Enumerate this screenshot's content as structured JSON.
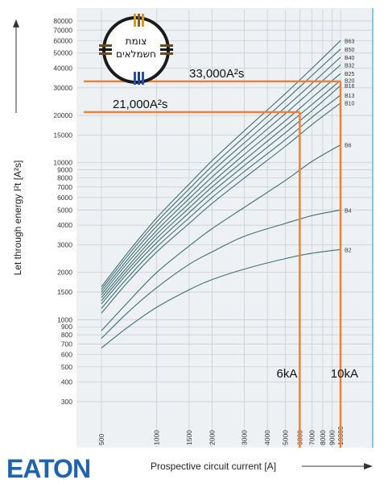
{
  "chart_data": {
    "type": "line",
    "xscale": "log",
    "yscale": "log",
    "xlim": [
      500,
      10000
    ],
    "ylim": [
      300,
      80000
    ],
    "xlabel": "Prospective circuit current [A]",
    "ylabel": "Let through energy I²t [A²s]",
    "x_ticks": [
      "500",
      "1000",
      "1500",
      "2000",
      "3000",
      "4000",
      "5000",
      "6000",
      "7000",
      "8000",
      "9000",
      "10000"
    ],
    "y_ticks": [
      "300",
      "400",
      "500",
      "600",
      "700",
      "800",
      "900",
      "1000",
      "1500",
      "2000",
      "3000",
      "4000",
      "5000",
      "6000",
      "7000",
      "8000",
      "9000",
      "10000",
      "15000",
      "20000",
      "30000",
      "40000",
      "50000",
      "60000",
      "70000",
      "80000"
    ],
    "grid": true,
    "series": [
      {
        "name": "B2",
        "x": [
          500,
          700,
          1000,
          1500,
          2000,
          3000,
          5000,
          7000,
          10000
        ],
        "values": [
          660,
          900,
          1200,
          1550,
          1800,
          2100,
          2450,
          2650,
          2800
        ]
      },
      {
        "name": "B4",
        "x": [
          500,
          700,
          1000,
          1500,
          2000,
          3000,
          5000,
          7000,
          10000
        ],
        "values": [
          760,
          1120,
          1600,
          2250,
          2700,
          3400,
          4100,
          4600,
          5000
        ]
      },
      {
        "name": "B6",
        "x": [
          500,
          700,
          1000,
          1500,
          2000,
          3000,
          5000,
          7000,
          10000
        ],
        "values": [
          850,
          1300,
          2000,
          2950,
          3800,
          5200,
          7700,
          10200,
          13000
        ]
      },
      {
        "name": "B10",
        "x": [
          500,
          700,
          1000,
          1500,
          2000,
          3000,
          5000,
          7000,
          10000
        ],
        "values": [
          1100,
          1750,
          2700,
          4100,
          5500,
          8000,
          12700,
          17500,
          24000
        ]
      },
      {
        "name": "B13",
        "x": [
          500,
          700,
          1000,
          1500,
          2000,
          3000,
          5000,
          7000,
          10000
        ],
        "values": [
          1180,
          1870,
          2900,
          4450,
          6000,
          8800,
          14000,
          19500,
          27000
        ]
      },
      {
        "name": "B16",
        "x": [
          500,
          700,
          1000,
          1500,
          2000,
          3000,
          5000,
          7000,
          10000
        ],
        "values": [
          1260,
          2000,
          3100,
          4800,
          6500,
          9600,
          15500,
          21500,
          31000
        ]
      },
      {
        "name": "B20",
        "x": [
          500,
          700,
          1000,
          1500,
          2000,
          3000,
          5000,
          7000,
          10000
        ],
        "values": [
          1320,
          2100,
          3300,
          5150,
          7000,
          10400,
          17000,
          23500,
          33500
        ]
      },
      {
        "name": "B25",
        "x": [
          500,
          700,
          1000,
          1500,
          2000,
          3000,
          5000,
          7000,
          10000
        ],
        "values": [
          1380,
          2200,
          3500,
          5500,
          7500,
          11300,
          18500,
          26000,
          37000
        ]
      },
      {
        "name": "B32",
        "x": [
          500,
          700,
          1000,
          1500,
          2000,
          3000,
          5000,
          7000,
          10000
        ],
        "values": [
          1440,
          2330,
          3700,
          5900,
          8100,
          12300,
          20500,
          29000,
          42000
        ]
      },
      {
        "name": "B40",
        "x": [
          500,
          700,
          1000,
          1500,
          2000,
          3000,
          5000,
          7000,
          10000
        ],
        "values": [
          1500,
          2450,
          3950,
          6300,
          8800,
          13400,
          22500,
          32000,
          47000
        ]
      },
      {
        "name": "B50",
        "x": [
          500,
          700,
          1000,
          1500,
          2000,
          3000,
          5000,
          7000,
          10000
        ],
        "values": [
          1560,
          2580,
          4200,
          6800,
          9500,
          14600,
          25000,
          36000,
          53000
        ]
      },
      {
        "name": "B63",
        "x": [
          500,
          700,
          1000,
          1500,
          2000,
          3000,
          5000,
          7000,
          10000
        ],
        "values": [
          1620,
          2700,
          4450,
          7300,
          10300,
          16000,
          27500,
          40000,
          60000
        ]
      }
    ],
    "annotations": [
      {
        "label": "6kA",
        "x": 6000,
        "y_value": 21000,
        "y_label": "21,000A²s"
      },
      {
        "label": "10kA",
        "x": 10000,
        "y_value": 33000,
        "y_label": "33,000A²s"
      }
    ],
    "annotation_color": "#e8823a",
    "curve_color": "#3f6f73"
  },
  "logo": {
    "line1": "צומת",
    "line2": "חשמלאים"
  },
  "brand": {
    "text": "EATON",
    "color": "#1f63ad"
  }
}
